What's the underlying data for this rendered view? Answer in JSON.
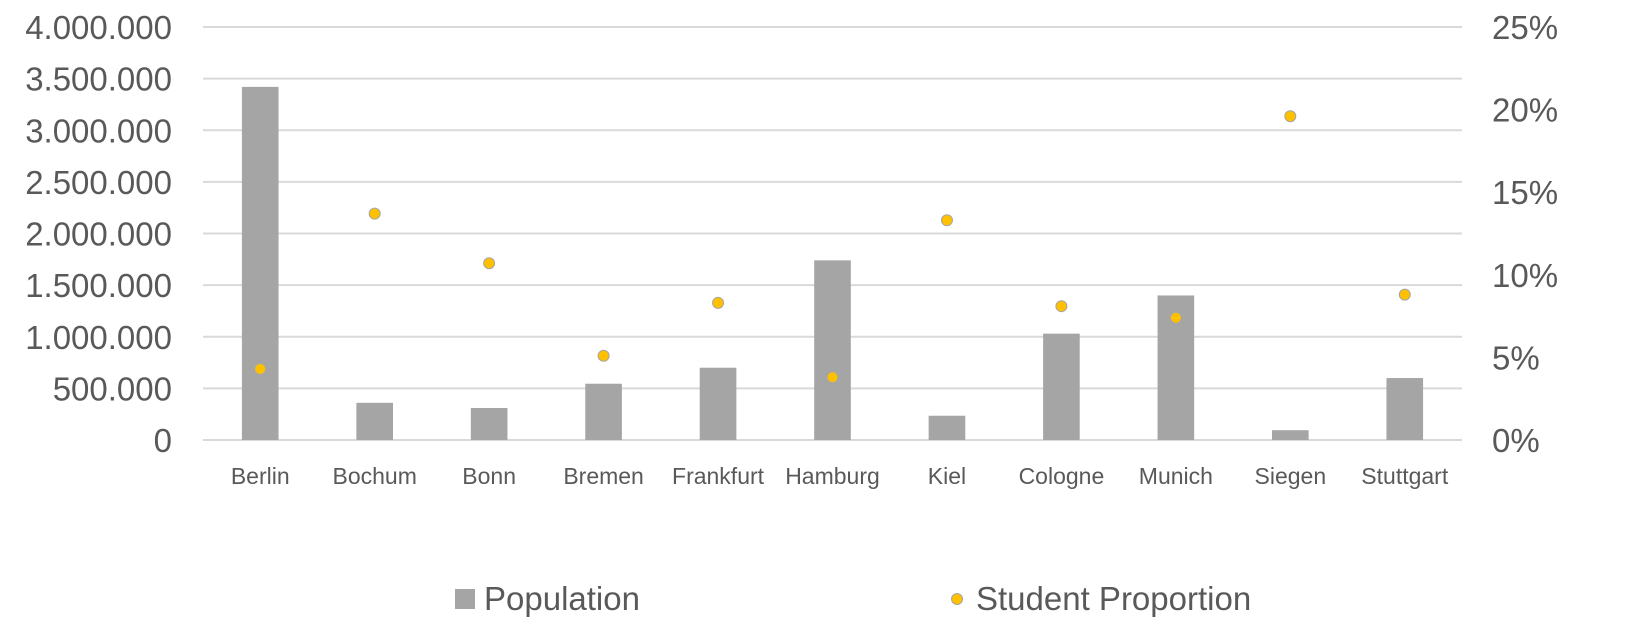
{
  "chart_data": {
    "type": "bar",
    "categories": [
      "Berlin",
      "Bochum",
      "Bonn",
      "Bremen",
      "Frankfurt",
      "Hamburg",
      "Kiel",
      "Cologne",
      "Munich",
      "Siegen",
      "Stuttgart"
    ],
    "series": [
      {
        "name": "Population",
        "type": "bar",
        "axis": "left",
        "color": "#a5a5a5",
        "values": [
          3420000,
          360000,
          310000,
          545000,
          700000,
          1740000,
          235000,
          1030000,
          1400000,
          95000,
          600000
        ]
      },
      {
        "name": "Student Proportion",
        "type": "scatter",
        "axis": "right",
        "color": "#ffc000",
        "values": [
          4.3,
          13.7,
          10.7,
          5.1,
          8.3,
          3.8,
          13.3,
          8.1,
          7.4,
          19.6,
          8.8
        ]
      }
    ],
    "y_left": {
      "ylim": [
        0,
        4000000
      ],
      "ticks": [
        0,
        500000,
        1000000,
        1500000,
        2000000,
        2500000,
        3000000,
        3500000,
        4000000
      ],
      "tick_labels": [
        "0",
        "500.000",
        "1.000.000",
        "1.500.000",
        "2.000.000",
        "2.500.000",
        "3.000.000",
        "3.500.000",
        "4.000.000"
      ]
    },
    "y_right": {
      "ylim": [
        0,
        25
      ],
      "ticks": [
        0,
        5,
        10,
        15,
        20,
        25
      ],
      "tick_labels": [
        "0%",
        "5%",
        "10%",
        "15%",
        "20%",
        "25%"
      ]
    },
    "grid": true,
    "legend_position": "bottom",
    "gridline_color": "#d9d9d9",
    "text_color": "#595959"
  }
}
